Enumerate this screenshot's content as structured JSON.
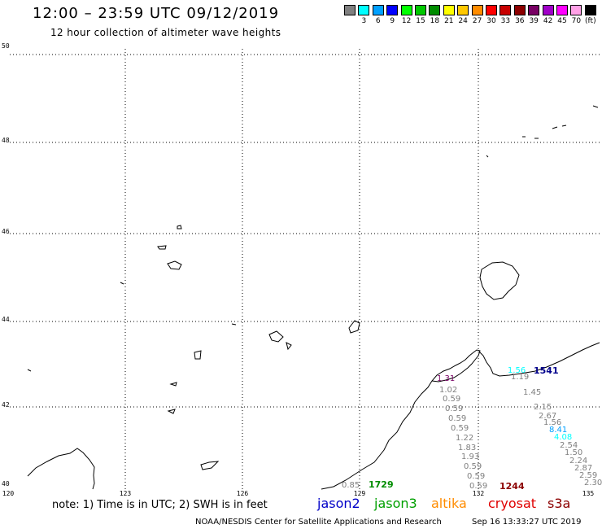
{
  "header": {
    "title": "12:00 – 23:59 UTC 09/12/2019",
    "subtitle": "12 hour collection of altimeter wave heights"
  },
  "scale": {
    "unit": "(ft)",
    "bins": [
      {
        "label": "",
        "color": "#808080"
      },
      {
        "label": "3",
        "color": "#00ffff"
      },
      {
        "label": "6",
        "color": "#00a0ff"
      },
      {
        "label": "9",
        "color": "#0000ff"
      },
      {
        "label": "12",
        "color": "#00ff00"
      },
      {
        "label": "15",
        "color": "#00c800"
      },
      {
        "label": "18",
        "color": "#008c00"
      },
      {
        "label": "21",
        "color": "#ffff00"
      },
      {
        "label": "24",
        "color": "#ffc800"
      },
      {
        "label": "27",
        "color": "#ff8c00"
      },
      {
        "label": "30",
        "color": "#ff0000"
      },
      {
        "label": "33",
        "color": "#c80000"
      },
      {
        "label": "36",
        "color": "#8c0000"
      },
      {
        "label": "39",
        "color": "#780064"
      },
      {
        "label": "42",
        "color": "#a000c8"
      },
      {
        "label": "45",
        "color": "#ff00ff"
      },
      {
        "label": "70",
        "color": "#ffa0e6"
      },
      {
        "label": "",
        "color": "#000000"
      }
    ]
  },
  "map": {
    "lon_range": [
      120,
      135
    ],
    "lat_range": [
      40,
      50
    ],
    "lat_labels": [
      "50",
      "48",
      "46",
      "44",
      "42",
      "40"
    ],
    "lon_labels": [
      "120",
      "123",
      "126",
      "129",
      "132",
      "135"
    ]
  },
  "observations": [
    {
      "text": "1.31",
      "color": "#780064"
    },
    {
      "text": "1.02",
      "color": "#808080"
    },
    {
      "text": "0.59",
      "color": "#808080"
    },
    {
      "text": "0.59",
      "color": "#808080"
    },
    {
      "text": "0.59",
      "color": "#808080"
    },
    {
      "text": "0.59",
      "color": "#808080"
    },
    {
      "text": "1.22",
      "color": "#808080"
    },
    {
      "text": "1.83",
      "color": "#808080"
    },
    {
      "text": "1.93",
      "color": "#808080"
    },
    {
      "text": "0.59",
      "color": "#808080"
    },
    {
      "text": "0.59",
      "color": "#808080"
    },
    {
      "text": "0.59",
      "color": "#808080"
    },
    {
      "text": "0.85",
      "color": "#808080"
    },
    {
      "text": "1.56",
      "color": "#00ffff"
    },
    {
      "text": "1.19",
      "color": "#808080"
    },
    {
      "text": "1.45",
      "color": "#808080"
    },
    {
      "text": "2.15",
      "color": "#808080"
    },
    {
      "text": "2.67",
      "color": "#808080"
    },
    {
      "text": "1.56",
      "color": "#808080"
    },
    {
      "text": "8.41",
      "color": "#00a0ff"
    },
    {
      "text": "4.08",
      "color": "#00ffff"
    },
    {
      "text": "2.54",
      "color": "#808080"
    },
    {
      "text": "1.50",
      "color": "#808080"
    },
    {
      "text": "2.24",
      "color": "#808080"
    },
    {
      "text": "2.87",
      "color": "#808080"
    },
    {
      "text": "2.59",
      "color": "#808080"
    },
    {
      "text": "2.30",
      "color": "#808080"
    }
  ],
  "satellite_counts": [
    {
      "text": "1729",
      "color": "#008c00"
    },
    {
      "text": "1244",
      "color": "#8c0000"
    },
    {
      "text": "1541",
      "color": "#00008c"
    }
  ],
  "note": "note: 1) Time is in UTC; 2) SWH is in feet",
  "legend": [
    {
      "name": "jason2",
      "color": "#0000c8"
    },
    {
      "name": "jason3",
      "color": "#00a000"
    },
    {
      "name": "altika",
      "color": "#ff8c00"
    },
    {
      "name": "cryosat",
      "color": "#e00000"
    },
    {
      "name": "s3a",
      "color": "#8c0000"
    }
  ],
  "footer": {
    "left": "NOAA/NESDIS Center for Satellite Applications and Research",
    "right": "Sep 16 13:33:27 UTC 2019"
  }
}
